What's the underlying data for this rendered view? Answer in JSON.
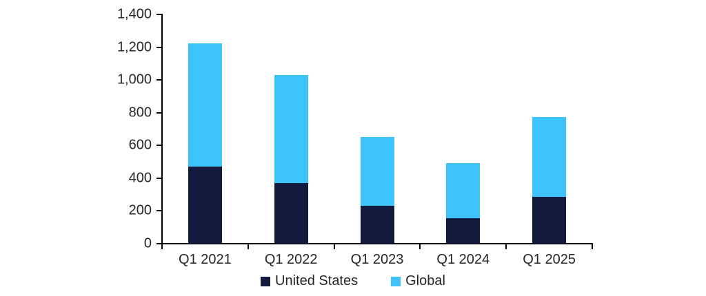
{
  "chart_data": {
    "type": "bar",
    "stacked": true,
    "title": "",
    "xlabel": "",
    "ylabel": "",
    "categories": [
      "Q1 2021",
      "Q1 2022",
      "Q1 2023",
      "Q1 2024",
      "Q1 2025"
    ],
    "series": [
      {
        "name": "United States",
        "color": "#121B3D",
        "values": [
          470,
          370,
          230,
          155,
          285
        ]
      },
      {
        "name": "Global",
        "color": "#3DC2FA",
        "values": [
          755,
          660,
          420,
          335,
          490
        ]
      }
    ],
    "stack_totals": [
      1225,
      1030,
      650,
      490,
      775
    ],
    "ylim": [
      0,
      1400
    ],
    "ytick_step": 200,
    "ytick_labels": [
      "0",
      "200",
      "400",
      "600",
      "800",
      "1,000",
      "1,200",
      "1,400"
    ],
    "grid": false,
    "legend_position": "bottom",
    "axis_color": "#000000",
    "text_color": "#262626",
    "background": "#FFFFFF"
  }
}
